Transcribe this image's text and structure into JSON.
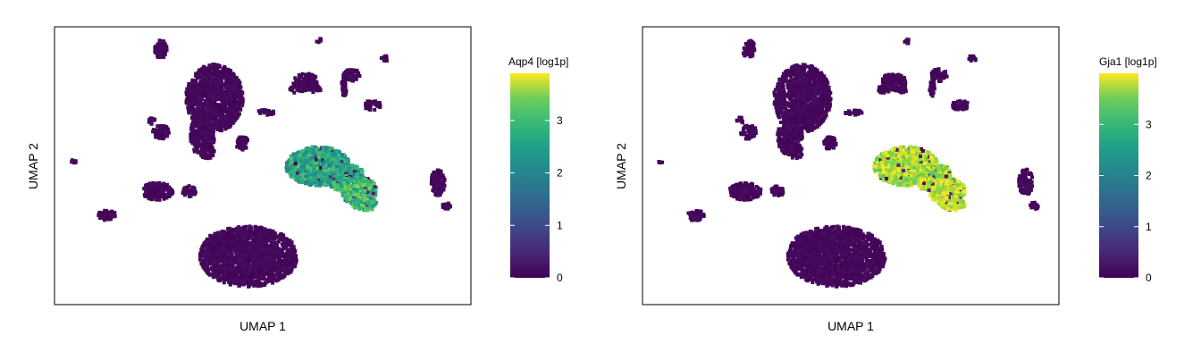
{
  "chart_data": [
    {
      "type": "scatter",
      "xlabel": "UMAP 1",
      "ylabel": "UMAP 2",
      "colorbar": {
        "title": "Aqp4 [log1p]",
        "ticks": [
          "0",
          "1",
          "2",
          "3"
        ],
        "range": [
          0,
          3.9
        ],
        "colormap": "viridis"
      },
      "grid": false,
      "clusters": [
        {
          "x": 4.3,
          "y": 10.9,
          "value": 2.3
        },
        {
          "x": 6.8,
          "y": 8.3,
          "value": 2.6
        }
      ]
    },
    {
      "type": "scatter",
      "xlabel": "UMAP 1",
      "ylabel": "UMAP 2",
      "colorbar": {
        "title": "Gja1 [log1p]",
        "ticks": [
          "0",
          "1",
          "2",
          "3"
        ],
        "range": [
          0,
          4.0
        ],
        "colormap": "viridis"
      },
      "grid": false,
      "clusters": [
        {
          "x": 4.3,
          "y": 10.9,
          "value": 3.5
        },
        {
          "x": 6.8,
          "y": 8.3,
          "value": 3.6
        }
      ]
    }
  ]
}
